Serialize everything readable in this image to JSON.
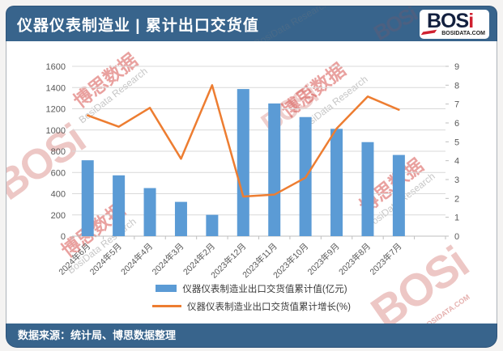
{
  "header": {
    "title": "仪器仪表制造业 | 累计出口交货值",
    "logo": {
      "main": "BOS",
      "accent": "i",
      "site": "BOSIDATA.COM"
    }
  },
  "footer": {
    "source": "数据来源：统计局、博思数据整理"
  },
  "watermarks": {
    "brand": "BOSi",
    "brand_cn": "博思数据",
    "brand_en": "BosiData Research",
    "site": "BOSIDATA.COM"
  },
  "chart_data": {
    "type": "bar",
    "combo": "bar+line",
    "title": "仪器仪表制造业 | 累计出口交货值",
    "categories": [
      "2024年6月",
      "2024年5月",
      "2024年4月",
      "2024年3月",
      "2024年2月",
      "2023年12月",
      "2023年11月",
      "2023年10月",
      "2023年9月",
      "2023年8月",
      "2023年7月"
    ],
    "series": [
      {
        "name": "仪器仪表制造业出口交货值累计值(亿元)",
        "type": "bar",
        "axis": "left",
        "color": "#5B9BD5",
        "values": [
          715,
          573,
          453,
          323,
          201,
          1386,
          1250,
          1122,
          1011,
          886,
          765
        ]
      },
      {
        "name": "仪器仪表制造业出口交货值累计增长(%)",
        "type": "line",
        "axis": "right",
        "color": "#ED7D31",
        "values": [
          6.4,
          5.8,
          6.8,
          4.1,
          8.0,
          2.1,
          2.2,
          3.1,
          5.7,
          7.4,
          6.7
        ]
      }
    ],
    "left_axis": {
      "min": 0,
      "max": 1600,
      "step": 200
    },
    "right_axis": {
      "min": 0,
      "max": 9,
      "step": 1
    },
    "grid": true,
    "legend_position": "bottom",
    "colors": {
      "grid": "#D9D9D9",
      "axis_text": "#595959",
      "header_bar": "#38648C"
    }
  }
}
